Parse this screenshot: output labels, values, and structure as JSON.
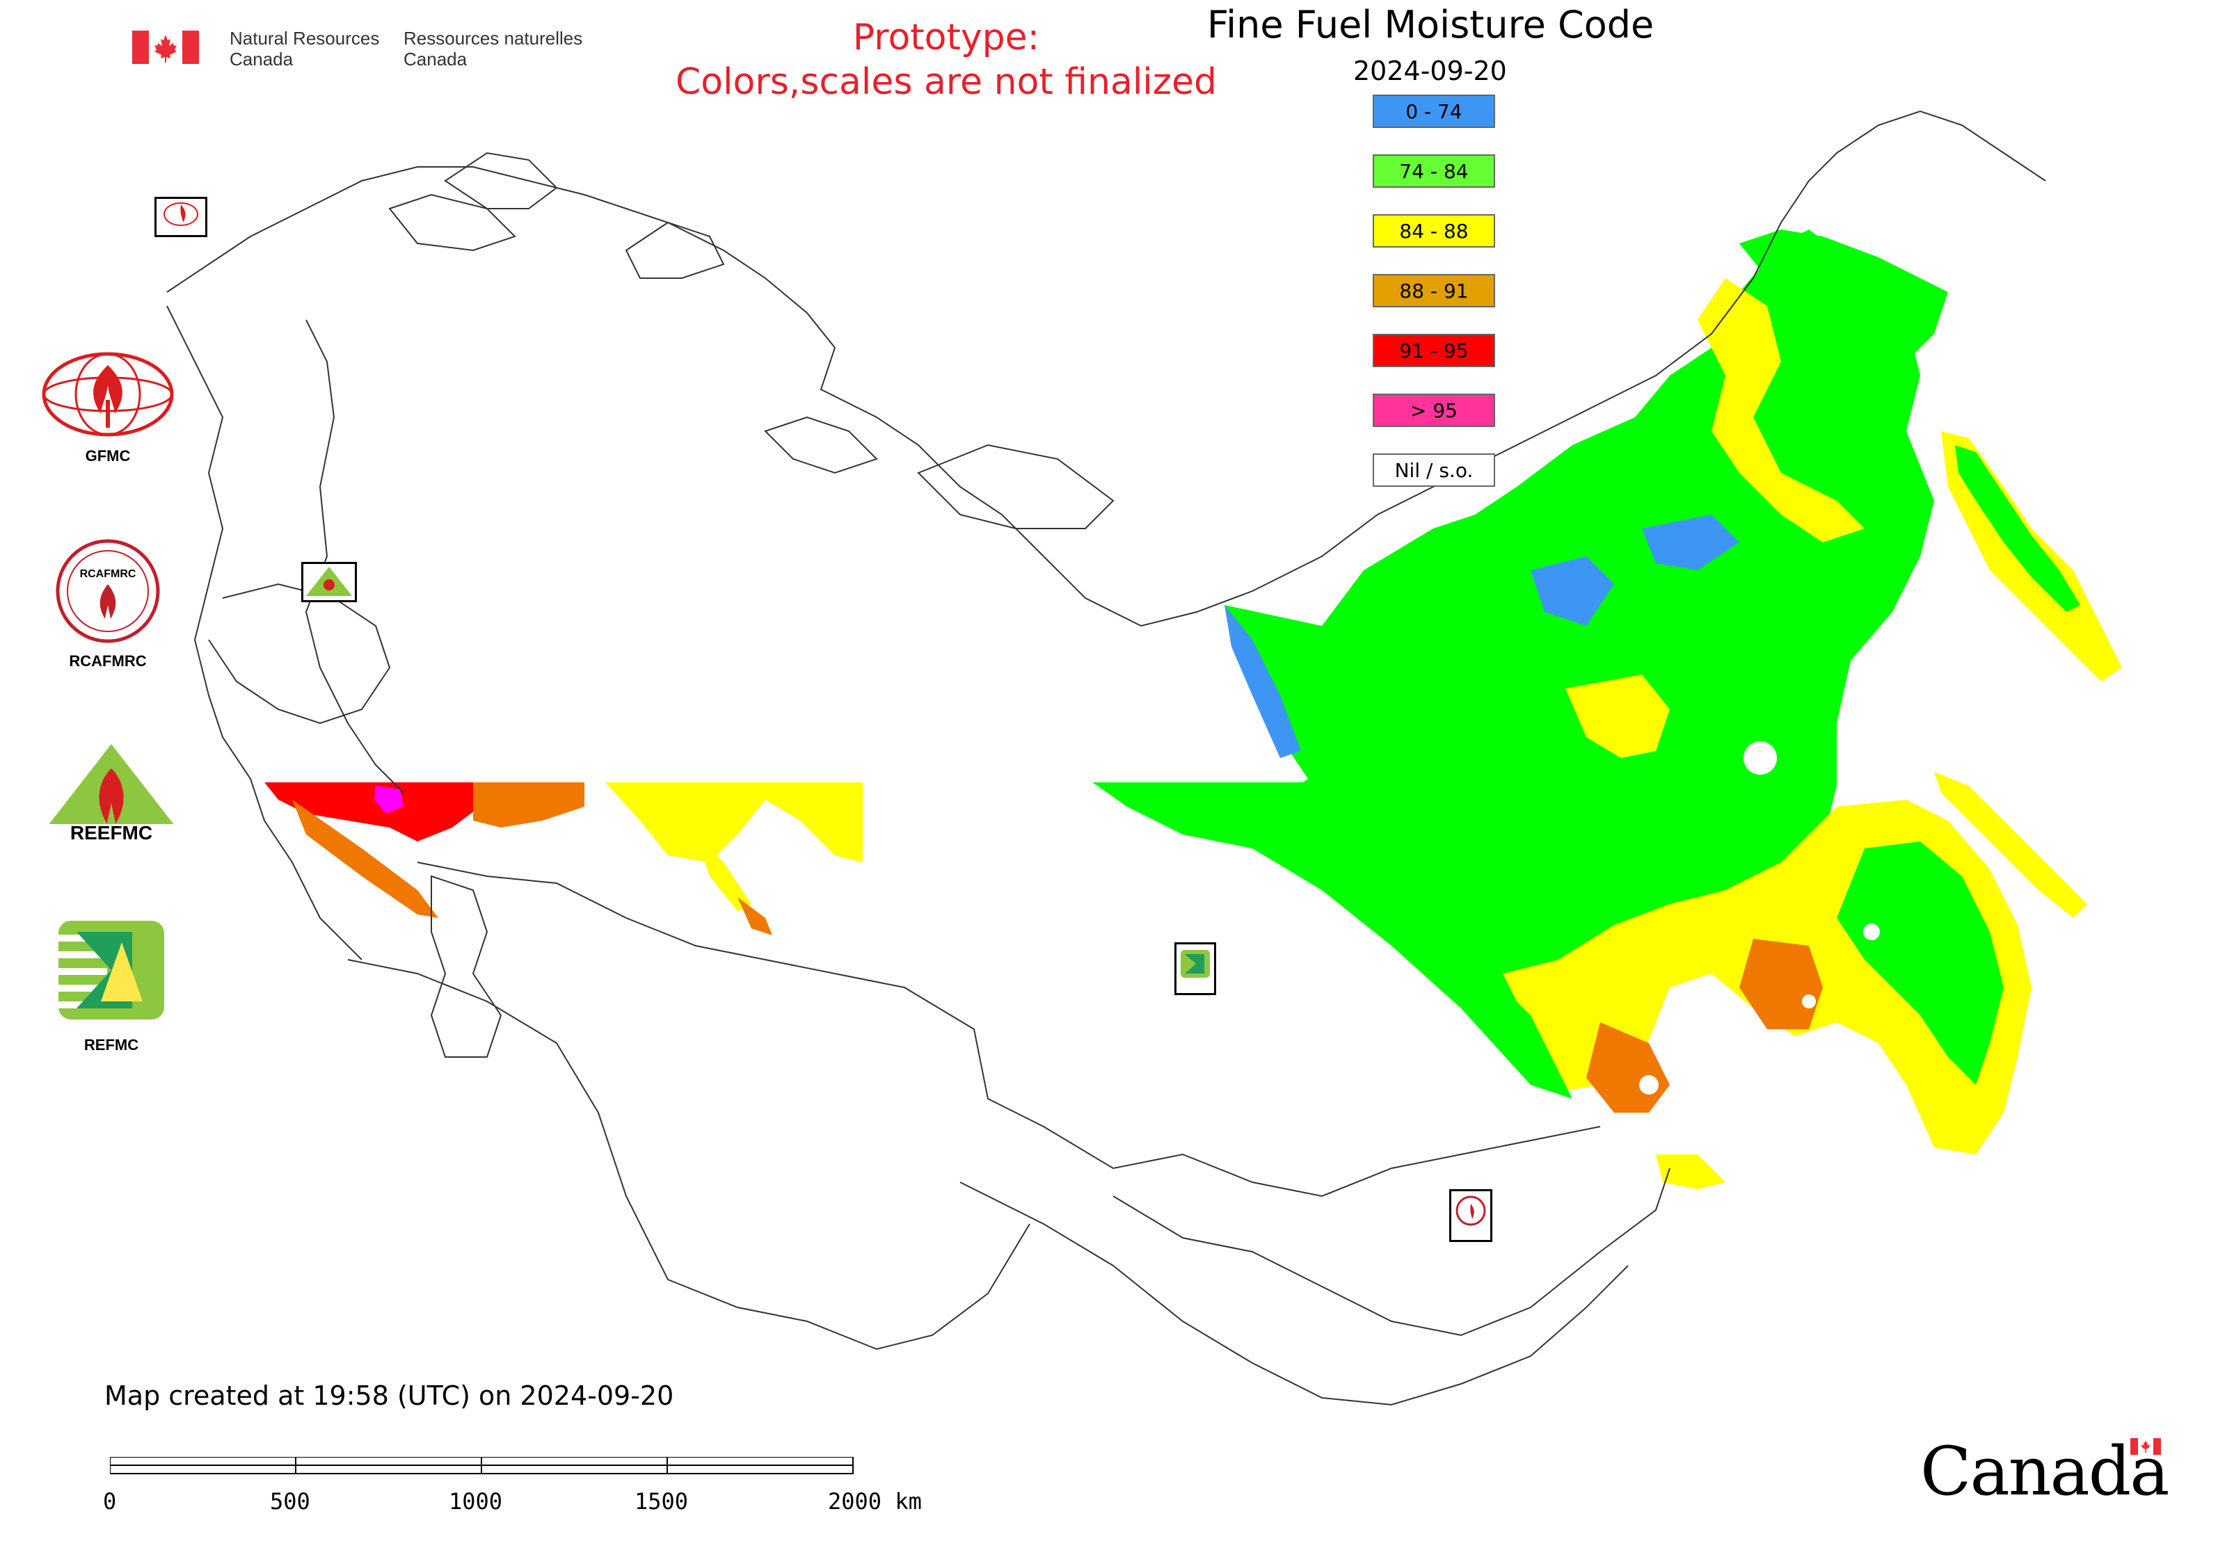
{
  "header": {
    "agency_en_line1": "Natural Resources",
    "agency_en_line2": "Canada",
    "agency_fr_line1": "Ressources naturelles",
    "agency_fr_line2": "Canada",
    "prototype_line1": "Prototype:",
    "prototype_line2": "Colors,scales are not finalized"
  },
  "map": {
    "title": "Fine Fuel Moisture Code",
    "date": "2024-09-20"
  },
  "legend": {
    "items": [
      {
        "label": "0 - 74",
        "color": "#3e96f4"
      },
      {
        "label": "74 - 84",
        "color": "#66ff33"
      },
      {
        "label": "84 - 88",
        "color": "#ffff00"
      },
      {
        "label": "88 - 91",
        "color": "#e2a000"
      },
      {
        "label": "91 - 95",
        "color": "#ff0000"
      },
      {
        "label": "> 95",
        "color": "#ff3399"
      },
      {
        "label": "Nil / s.o.",
        "color": "#ffffff"
      }
    ]
  },
  "logos": {
    "gfmc": "GFMC",
    "rcafmrc": "RCAFMRC",
    "reefmc": "REEFMC",
    "refmc": "REFMC"
  },
  "footer": {
    "created": "Map created at 19:58 (UTC) on 2024-09-20",
    "wordmark": "Canada"
  },
  "scale_bar": {
    "labels": [
      "0",
      "500",
      "1000",
      "1500",
      "2000 km"
    ]
  }
}
